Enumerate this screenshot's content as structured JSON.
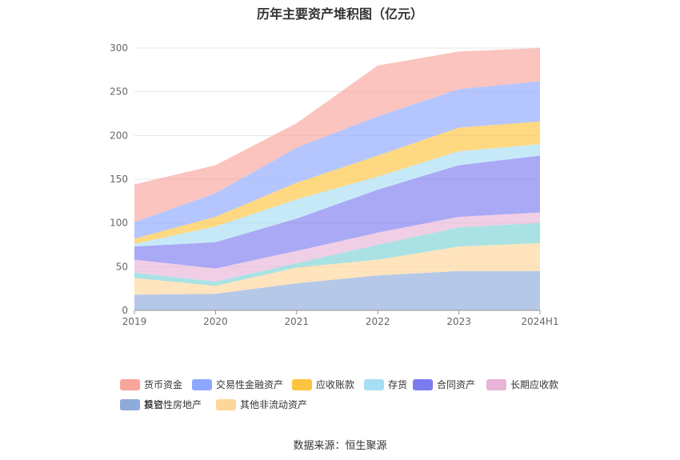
{
  "chart_data": {
    "type": "area",
    "stacked": true,
    "title": "历年主要资产堆积图（亿元）",
    "categories": [
      "2019",
      "2020",
      "2021",
      "2022",
      "2023",
      "2024H1"
    ],
    "ylim": [
      0,
      300
    ],
    "yticks": [
      "0",
      "50",
      "100",
      "150",
      "200",
      "250",
      "300"
    ],
    "grid": true,
    "legend_position": "bottom",
    "series": [
      {
        "name": "其它",
        "color": "#8FAADC",
        "values": [
          18,
          19,
          31,
          40,
          45,
          45
        ]
      },
      {
        "name": "其他非流动资产",
        "color": "#FFD699",
        "values": [
          19,
          9,
          18,
          18,
          28,
          32
        ]
      },
      {
        "name": "投资性房地产",
        "color": "#7DD3D6",
        "values": [
          6,
          5,
          5,
          17,
          22,
          23
        ]
      },
      {
        "name": "长期应收款",
        "color": "#E8B4D8",
        "values": [
          15,
          15,
          14,
          14,
          12,
          12
        ]
      },
      {
        "name": "合同资产",
        "color": "#7B7BF0",
        "values": [
          15,
          30,
          37,
          49,
          59,
          65
        ]
      },
      {
        "name": "存货",
        "color": "#A7DDF5",
        "values": [
          3,
          18,
          22,
          15,
          16,
          13
        ]
      },
      {
        "name": "应收账款",
        "color": "#FDC43F",
        "values": [
          6,
          11,
          19,
          24,
          27,
          26
        ]
      },
      {
        "name": "交易性金融资产",
        "color": "#8DA8FF",
        "values": [
          19,
          27,
          40,
          45,
          44,
          46
        ]
      },
      {
        "name": "货币资金",
        "color": "#F9A59B",
        "values": [
          43,
          32,
          28,
          58,
          43,
          38
        ]
      }
    ],
    "legend_order": [
      "货币资金",
      "交易性金融资产",
      "应收账款",
      "存货",
      "合同资产",
      "长期应收款",
      "投资性房地产",
      "其他非流动资产",
      "其它"
    ]
  },
  "source_text": "数据来源：恒生聚源"
}
